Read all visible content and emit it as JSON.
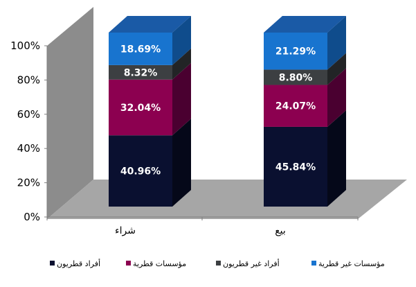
{
  "chart_data": {
    "type": "bar",
    "stacked": true,
    "percent": true,
    "three_d": true,
    "categories": [
      "شراء",
      "بيع"
    ],
    "series": [
      {
        "name": "أفراد قطريون",
        "values": [
          40.96,
          45.84
        ],
        "labels": [
          "40.96%",
          "45.84%"
        ],
        "color": "#0a1030",
        "side": "#050819",
        "top": "#111a40"
      },
      {
        "name": "مؤسسات قطرية",
        "values": [
          32.04,
          24.07
        ],
        "labels": [
          "32.04%",
          "24.07%"
        ],
        "color": "#8c0050",
        "side": "#4a0030",
        "top": "#a0105c"
      },
      {
        "name": "أفراد غير قطريون",
        "values": [
          8.32,
          8.8
        ],
        "labels": [
          "8.32%",
          "8.80%"
        ],
        "color": "#3c3f42",
        "side": "#222426",
        "top": "#4a4d50"
      },
      {
        "name": "مؤسسات غير قطرية",
        "values": [
          18.69,
          21.29
        ],
        "labels": [
          "18.69%",
          "21.29%"
        ],
        "color": "#1874cf",
        "side": "#0f4c8c",
        "top": "#1a5aa6"
      }
    ],
    "yticks": [
      "0%",
      "20%",
      "40%",
      "60%",
      "80%",
      "100%"
    ],
    "ylim": [
      0,
      100
    ],
    "grid": false,
    "legend": "bottom",
    "colors": {
      "wall": "#8c8c8c",
      "floor": "#a6a6a6"
    }
  }
}
